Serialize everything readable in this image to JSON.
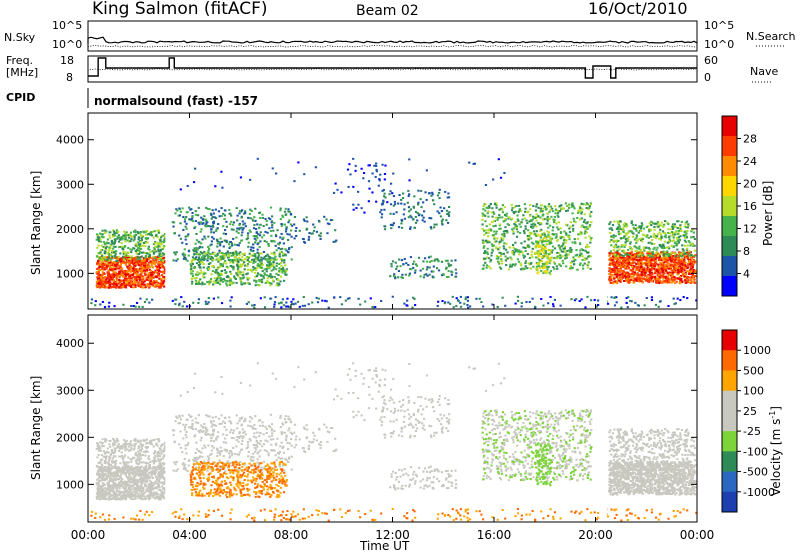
{
  "header": {
    "station": "King Salmon (fitACF)",
    "beam": "Beam 02",
    "date": "16/Oct/2010"
  },
  "colors": {
    "power": [
      "#0000ff",
      "#1c55a8",
      "#2e8b57",
      "#46b24a",
      "#b6dc2a",
      "#ffd700",
      "#ff8c00",
      "#ff3c00",
      "#e60000"
    ],
    "velocity": [
      "#1d3fb0",
      "#2a67c0",
      "#2e8b57",
      "#7cd33a",
      "#c8c8c0",
      "#c8c8c0",
      "#ffa500",
      "#ff6a00",
      "#e60000"
    ]
  },
  "chart_data": [
    {
      "type": "line",
      "panel": "noise",
      "left_label": "N.Sky",
      "right_label": "N.Search",
      "left_ticks": [
        "10^5",
        "10^0"
      ],
      "right_ticks": [
        "10^5",
        "10^0"
      ]
    },
    {
      "type": "line",
      "panel": "frequency",
      "left_label_1": "Freq.",
      "left_label_2": "[MHz]",
      "right_label": "Nave",
      "left_ticks": [
        "18",
        "8"
      ],
      "right_ticks": [
        "60",
        "0"
      ]
    },
    {
      "type": "text",
      "panel": "cpid",
      "label": "CPID",
      "value": "normalsound (fast) -157"
    },
    {
      "type": "heatmap",
      "panel": "power",
      "ylabel": "Slant Range [km]",
      "ylim": [
        200,
        4600
      ],
      "yticks": [
        "1000",
        "2000",
        "3000",
        "4000"
      ],
      "colorbar_title": "Power [dB]",
      "colorbar_ticks": [
        "4",
        "8",
        "12",
        "16",
        "20",
        "24",
        "28"
      ]
    },
    {
      "type": "heatmap",
      "panel": "velocity",
      "ylabel": "Slant Range [km]",
      "ylim": [
        200,
        4600
      ],
      "yticks": [
        "1000",
        "2000",
        "3000",
        "4000"
      ],
      "colorbar_title": "Velocity [m s",
      "colorbar_title_sup": "-1",
      "colorbar_title_end": "]",
      "colorbar_ticks": [
        "1000",
        "500",
        "100",
        "25",
        "-25",
        "-100",
        "-500",
        "-1000"
      ]
    }
  ],
  "x_axis": {
    "label": "Time UT",
    "ticks": [
      "00:00",
      "04:00",
      "08:00",
      "12:00",
      "16:00",
      "20:00",
      "00:00"
    ]
  }
}
